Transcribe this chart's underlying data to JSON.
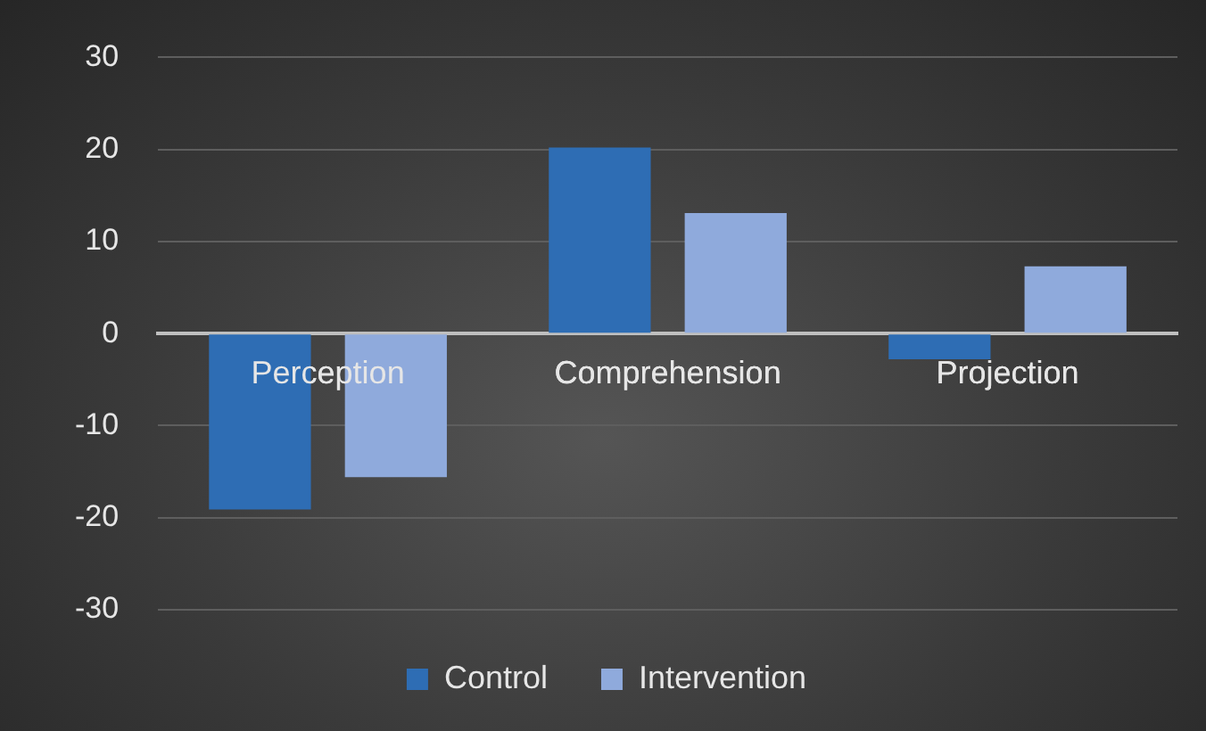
{
  "chart_data": {
    "type": "bar",
    "categories": [
      "Perception",
      "Comprehension",
      "Projection"
    ],
    "series": [
      {
        "name": "Control",
        "color": "#2e6db4",
        "values": [
          -19.1,
          20.2,
          -2.8
        ]
      },
      {
        "name": "Intervention",
        "color": "#8faadc",
        "values": [
          -15.6,
          13.1,
          7.3
        ]
      }
    ],
    "ylim": [
      -30,
      30
    ],
    "yticks": [
      -30,
      -20,
      -10,
      0,
      10,
      20,
      30
    ],
    "grid": "y",
    "legend": "bottom"
  }
}
